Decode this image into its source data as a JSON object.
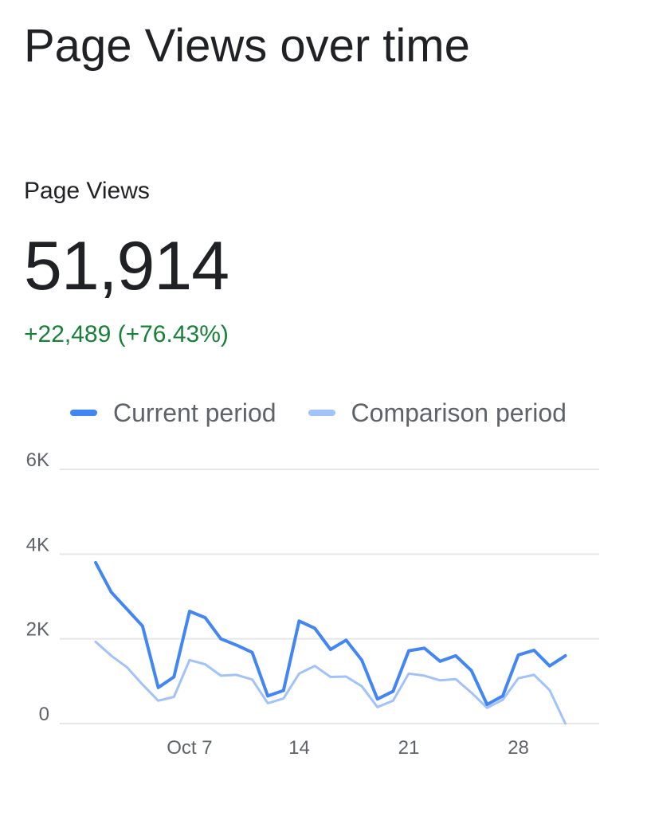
{
  "header": {
    "title": "Page Views over time"
  },
  "metric": {
    "label": "Page Views",
    "value": "51,914",
    "change": "+22,489 (+76.43%)",
    "change_color": "#188038"
  },
  "chart_data": {
    "type": "line",
    "x": [
      "Oct 1",
      "Oct 2",
      "Oct 3",
      "Oct 4",
      "Oct 5",
      "Oct 6",
      "Oct 7",
      "Oct 8",
      "Oct 9",
      "Oct 10",
      "Oct 11",
      "Oct 12",
      "Oct 13",
      "Oct 14",
      "Oct 15",
      "Oct 16",
      "Oct 17",
      "Oct 18",
      "Oct 19",
      "Oct 20",
      "Oct 21",
      "Oct 22",
      "Oct 23",
      "Oct 24",
      "Oct 25",
      "Oct 26",
      "Oct 27",
      "Oct 28",
      "Oct 29",
      "Oct 30",
      "Oct 31"
    ],
    "series": [
      {
        "name": "Current period",
        "color": "#4285f4",
        "values": [
          3800,
          3100,
          2700,
          2300,
          850,
          1100,
          2650,
          2500,
          2000,
          1850,
          1680,
          650,
          780,
          2420,
          2250,
          1750,
          1970,
          1500,
          580,
          760,
          1720,
          1780,
          1470,
          1600,
          1250,
          450,
          650,
          1620,
          1730,
          1360,
          1600
        ]
      },
      {
        "name": "Comparison period",
        "color": "#a1c2fa",
        "values": [
          1930,
          1600,
          1330,
          920,
          540,
          630,
          1500,
          1400,
          1130,
          1150,
          1040,
          480,
          590,
          1180,
          1360,
          1100,
          1110,
          880,
          390,
          540,
          1180,
          1130,
          1020,
          1050,
          730,
          370,
          560,
          1070,
          1150,
          790,
          0
        ]
      }
    ],
    "y_ticks": [
      {
        "value": 0,
        "label": "0"
      },
      {
        "value": 2000,
        "label": "2K"
      },
      {
        "value": 4000,
        "label": "4K"
      },
      {
        "value": 6000,
        "label": "6K"
      }
    ],
    "x_ticks": [
      {
        "index": 6,
        "label": "Oct 7"
      },
      {
        "index": 13,
        "label": "14"
      },
      {
        "index": 20,
        "label": "21"
      },
      {
        "index": 27,
        "label": "28"
      }
    ],
    "ylim": [
      0,
      6000
    ],
    "grid": true,
    "legend": "top"
  }
}
